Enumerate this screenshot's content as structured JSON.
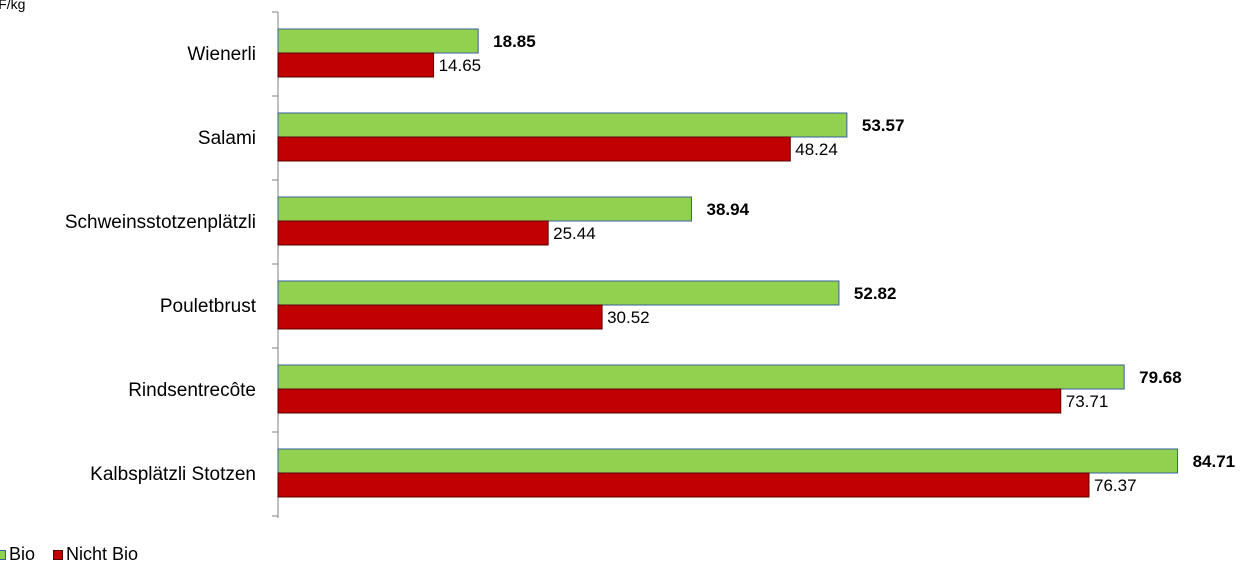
{
  "unit_label": "CHF/kg",
  "colors": {
    "bio": "#92d050",
    "bio_border": "#3a5f9a",
    "nicht_bio": "#c00000",
    "nicht_bio_border": "#5a0000",
    "axis": "#808080"
  },
  "legend": [
    {
      "name": "Bio",
      "color": "#92d050"
    },
    {
      "name": "Nicht Bio",
      "color": "#c00000"
    }
  ],
  "chart_data": {
    "type": "bar",
    "orientation": "horizontal",
    "title": "",
    "xlabel": "",
    "ylabel": "CHF/kg",
    "xlim": [
      0,
      85
    ],
    "grid": false,
    "legend_position": "bottom-left",
    "categories": [
      "Wienerli",
      "Salami",
      "Schweinsstotzenplätzli",
      "Pouletbrust",
      "Rindsentrecôte",
      "Kalbsplätzli Stotzen"
    ],
    "series": [
      {
        "name": "Bio",
        "values": [
          18.85,
          53.57,
          38.94,
          52.82,
          79.68,
          84.71
        ],
        "labels": [
          "18.85",
          "53.57",
          "38.94",
          "52.82",
          "79.68",
          "84.71"
        ]
      },
      {
        "name": "Nicht Bio",
        "values": [
          14.65,
          48.24,
          25.44,
          30.52,
          73.71,
          76.37
        ],
        "labels": [
          "14.65",
          "48.24",
          "25.44",
          "30.52",
          "73.71",
          "76.37"
        ]
      }
    ]
  }
}
